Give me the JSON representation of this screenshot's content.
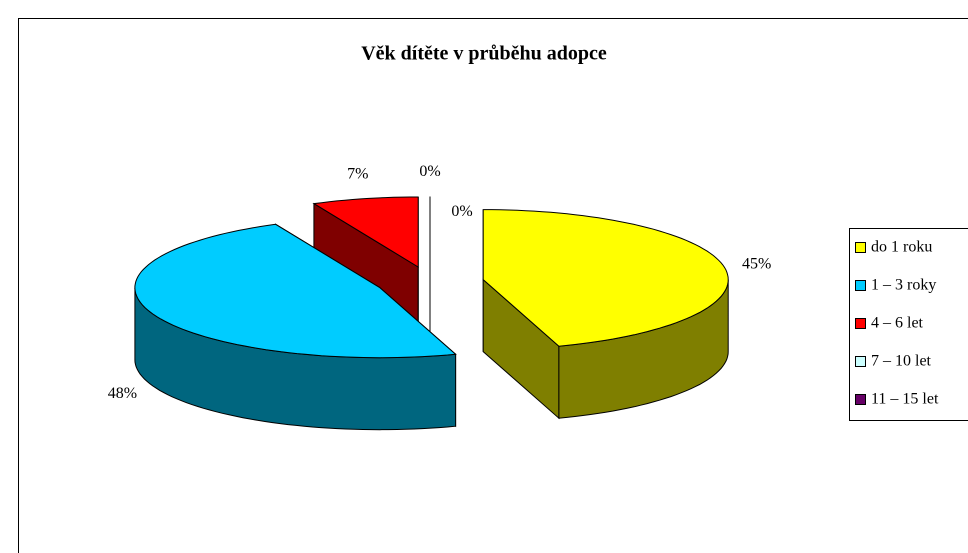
{
  "chart_data": {
    "type": "pie",
    "title": "Věk dítěte v průběhu adopce",
    "categories": [
      "do 1 roku",
      "1 – 3 roky",
      "4 – 6 let",
      "7 – 10 let",
      "11 – 15 let"
    ],
    "values": [
      45,
      48,
      7,
      0,
      0
    ],
    "value_labels": [
      "45%",
      "48%",
      "7%",
      "0%",
      "0%"
    ],
    "colors": [
      "#ffff00",
      "#00ccff",
      "#ff0000",
      "#ccffff",
      "#660066"
    ],
    "legend": "right"
  }
}
